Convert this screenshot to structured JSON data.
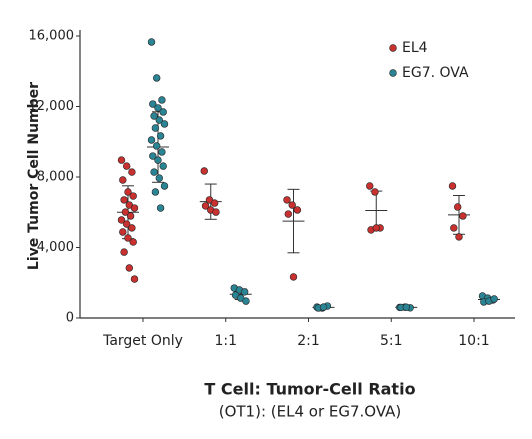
{
  "chart_data": {
    "type": "dot",
    "ylabel": "Live Tumor Cell Number",
    "xlabel": "T Cell: Tumor-Cell Ratio",
    "subtitle": "(OT1): (EL4 or EG7.OVA)",
    "categories": [
      "Target Only",
      "1:1",
      "2:1",
      "5:1",
      "10:1"
    ],
    "ylim": [
      0,
      16000
    ],
    "yticks": [
      0,
      {
        "value": 4000,
        "label": "4,000"
      },
      {
        "value": 8000,
        "label": "8,000"
      },
      {
        "value": 12000,
        "label": "12,000"
      },
      {
        "value": 16000,
        "label": "16,000"
      }
    ],
    "legend": "upper right",
    "series": [
      {
        "name": "EL4",
        "color": "#c8312f",
        "values": [
          [
            8960,
            8620,
            8280,
            7830,
            7150,
            6920,
            6700,
            6410,
            6240,
            6010,
            5790,
            5560,
            5330,
            5110,
            4880,
            4540,
            4310,
            3740,
            2840,
            2210
          ],
          [
            8340,
            6700,
            6520,
            6360,
            6130,
            6010
          ],
          [
            6700,
            6410,
            6130,
            5900,
            2330
          ],
          [
            7490,
            7150,
            5110,
            5000,
            5110
          ],
          [
            7490,
            6300,
            5790,
            5110,
            4600
          ]
        ],
        "mean": [
          6000,
          6600,
          5500,
          6100,
          5850
        ],
        "sd": [
          1500,
          1000,
          1800,
          1100,
          1100
        ]
      },
      {
        "name": "EG7. OVA",
        "color": "#2a8494",
        "values": [
          [
            15660,
            13620,
            12370,
            12140,
            11920,
            11690,
            11460,
            11230,
            11010,
            10780,
            10330,
            10100,
            9760,
            9420,
            9190,
            8960,
            8620,
            8280,
            7940,
            7490,
            7150,
            6240
          ],
          [
            1700,
            1590,
            1480,
            1300,
            1130,
            960
          ],
          [
            620,
            570,
            680,
            570,
            620
          ],
          [
            600,
            620,
            580,
            600,
            610
          ],
          [
            1250,
            1130,
            1020,
            910,
            960,
            1080
          ]
        ],
        "mean": [
          9700,
          1350,
          600,
          600,
          1050
        ],
        "sd": [
          2000,
          300,
          60,
          50,
          130
        ]
      }
    ]
  }
}
